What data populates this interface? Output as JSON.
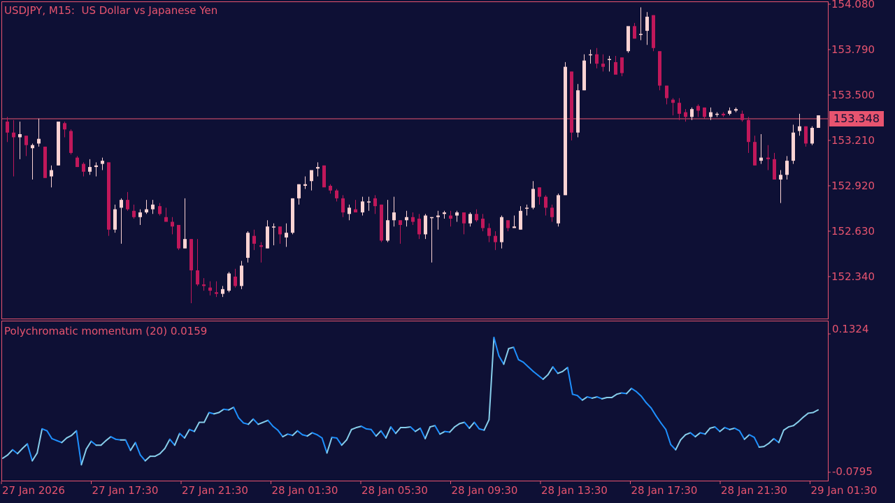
{
  "header": {
    "title": "USDJPY, M15:  US Dollar vs Japanese Yen"
  },
  "indicator": {
    "label": "Polychromatic momentum (20) 0.0159",
    "max_label": "0.1324",
    "min_label": "-0.0795"
  },
  "price_axis": {
    "ticks": [
      "154.080",
      "153.790",
      "153.500",
      "153.210",
      "152.920",
      "152.630",
      "152.340"
    ],
    "current_price": "153.348"
  },
  "time_axis": {
    "ticks": [
      "27 Jan 2026",
      "27 Jan 17:30",
      "27 Jan 21:30",
      "28 Jan 01:30",
      "28 Jan 05:30",
      "28 Jan 09:30",
      "28 Jan 13:30",
      "28 Jan 17:30",
      "28 Jan 21:30",
      "29 Jan 01:30"
    ]
  },
  "colors": {
    "background": "#0e1035",
    "axis": "#e8546f",
    "bull": "#fbd3d3",
    "bear": "#c0185a",
    "momentum_up": "#1e90ff",
    "momentum_down": "#87ceeb"
  },
  "chart_data": [
    {
      "type": "candlestick",
      "title": "USDJPY, M15:  US Dollar vs Japanese Yen",
      "ylabel": "Price",
      "ylim": [
        152.11,
        154.1
      ],
      "yticks": [
        154.08,
        153.79,
        153.5,
        153.21,
        152.92,
        152.63,
        152.34
      ],
      "current_price": 153.348,
      "xticks": [
        "27 Jan 2026",
        "27 Jan 17:30",
        "27 Jan 21:30",
        "28 Jan 01:30",
        "28 Jan 05:30",
        "28 Jan 09:30",
        "28 Jan 13:30",
        "28 Jan 17:30",
        "28 Jan 21:30",
        "29 Jan 01:30"
      ],
      "candles": [
        {
          "o": 153.33,
          "h": 153.36,
          "l": 153.2,
          "c": 153.26
        },
        {
          "o": 153.26,
          "h": 153.34,
          "l": 152.98,
          "c": 153.23
        },
        {
          "o": 153.23,
          "h": 153.33,
          "l": 153.09,
          "c": 153.25
        },
        {
          "o": 153.24,
          "h": 153.24,
          "l": 153.11,
          "c": 153.18
        },
        {
          "o": 153.16,
          "h": 153.19,
          "l": 152.96,
          "c": 153.18
        },
        {
          "o": 153.19,
          "h": 153.35,
          "l": 153.17,
          "c": 153.22
        },
        {
          "o": 153.17,
          "h": 153.17,
          "l": 152.97,
          "c": 152.97
        },
        {
          "o": 152.98,
          "h": 153.05,
          "l": 152.91,
          "c": 153.02
        },
        {
          "o": 153.05,
          "h": 153.32,
          "l": 153.05,
          "c": 153.33
        },
        {
          "o": 153.32,
          "h": 153.33,
          "l": 153.23,
          "c": 153.28
        },
        {
          "o": 153.27,
          "h": 153.28,
          "l": 153.12,
          "c": 153.13
        },
        {
          "o": 153.1,
          "h": 153.11,
          "l": 153.04,
          "c": 153.04
        },
        {
          "o": 153.06,
          "h": 153.07,
          "l": 152.98,
          "c": 153.01
        },
        {
          "o": 153.01,
          "h": 153.09,
          "l": 152.99,
          "c": 153.04
        },
        {
          "o": 153.04,
          "h": 153.07,
          "l": 152.98,
          "c": 153.05
        },
        {
          "o": 153.06,
          "h": 153.1,
          "l": 153.02,
          "c": 153.08
        },
        {
          "o": 153.07,
          "h": 153.07,
          "l": 152.6,
          "c": 152.64
        },
        {
          "o": 152.64,
          "h": 152.8,
          "l": 152.62,
          "c": 152.77
        },
        {
          "o": 152.78,
          "h": 152.84,
          "l": 152.55,
          "c": 152.83
        },
        {
          "o": 152.83,
          "h": 152.88,
          "l": 152.76,
          "c": 152.77
        },
        {
          "o": 152.76,
          "h": 152.8,
          "l": 152.71,
          "c": 152.72
        },
        {
          "o": 152.72,
          "h": 152.77,
          "l": 152.67,
          "c": 152.75
        },
        {
          "o": 152.75,
          "h": 152.83,
          "l": 152.74,
          "c": 152.77
        },
        {
          "o": 152.77,
          "h": 152.83,
          "l": 152.74,
          "c": 152.8
        },
        {
          "o": 152.79,
          "h": 152.81,
          "l": 152.73,
          "c": 152.74
        },
        {
          "o": 152.72,
          "h": 152.78,
          "l": 152.69,
          "c": 152.69
        },
        {
          "o": 152.69,
          "h": 152.72,
          "l": 152.61,
          "c": 152.66
        },
        {
          "o": 152.67,
          "h": 152.67,
          "l": 152.51,
          "c": 152.52
        },
        {
          "o": 152.52,
          "h": 152.84,
          "l": 152.52,
          "c": 152.58
        },
        {
          "o": 152.58,
          "h": 152.58,
          "l": 152.17,
          "c": 152.38
        },
        {
          "o": 152.38,
          "h": 152.58,
          "l": 152.28,
          "c": 152.29
        },
        {
          "o": 152.29,
          "h": 152.33,
          "l": 152.25,
          "c": 152.28
        },
        {
          "o": 152.27,
          "h": 152.31,
          "l": 152.22,
          "c": 152.25
        },
        {
          "o": 152.24,
          "h": 152.31,
          "l": 152.21,
          "c": 152.23
        },
        {
          "o": 152.23,
          "h": 152.28,
          "l": 152.21,
          "c": 152.26
        },
        {
          "o": 152.25,
          "h": 152.37,
          "l": 152.24,
          "c": 152.36
        },
        {
          "o": 152.34,
          "h": 152.39,
          "l": 152.27,
          "c": 152.28
        },
        {
          "o": 152.28,
          "h": 152.44,
          "l": 152.26,
          "c": 152.41
        },
        {
          "o": 152.46,
          "h": 152.63,
          "l": 152.43,
          "c": 152.62
        },
        {
          "o": 152.6,
          "h": 152.64,
          "l": 152.51,
          "c": 152.55
        },
        {
          "o": 152.54,
          "h": 152.56,
          "l": 152.43,
          "c": 152.53
        },
        {
          "o": 152.52,
          "h": 152.7,
          "l": 152.52,
          "c": 152.66
        },
        {
          "o": 152.66,
          "h": 152.68,
          "l": 152.54,
          "c": 152.66
        },
        {
          "o": 152.66,
          "h": 152.66,
          "l": 152.55,
          "c": 152.61
        },
        {
          "o": 152.59,
          "h": 152.68,
          "l": 152.53,
          "c": 152.62
        },
        {
          "o": 152.62,
          "h": 152.84,
          "l": 152.61,
          "c": 152.84
        },
        {
          "o": 152.84,
          "h": 152.93,
          "l": 152.8,
          "c": 152.93
        },
        {
          "o": 152.92,
          "h": 152.98,
          "l": 152.9,
          "c": 152.93
        },
        {
          "o": 152.95,
          "h": 153.01,
          "l": 152.89,
          "c": 153.02
        },
        {
          "o": 153.03,
          "h": 153.07,
          "l": 152.98,
          "c": 153.04
        },
        {
          "o": 153.05,
          "h": 153.05,
          "l": 152.92,
          "c": 152.91
        },
        {
          "o": 152.92,
          "h": 152.93,
          "l": 152.87,
          "c": 152.89
        },
        {
          "o": 152.89,
          "h": 152.9,
          "l": 152.82,
          "c": 152.84
        },
        {
          "o": 152.84,
          "h": 152.86,
          "l": 152.72,
          "c": 152.75
        },
        {
          "o": 152.74,
          "h": 152.8,
          "l": 152.7,
          "c": 152.78
        },
        {
          "o": 152.77,
          "h": 152.83,
          "l": 152.75,
          "c": 152.75
        },
        {
          "o": 152.75,
          "h": 152.85,
          "l": 152.73,
          "c": 152.82
        },
        {
          "o": 152.82,
          "h": 152.85,
          "l": 152.76,
          "c": 152.82
        },
        {
          "o": 152.84,
          "h": 152.86,
          "l": 152.74,
          "c": 152.79
        },
        {
          "o": 152.8,
          "h": 152.8,
          "l": 152.56,
          "c": 152.57
        },
        {
          "o": 152.57,
          "h": 152.83,
          "l": 152.56,
          "c": 152.7
        },
        {
          "o": 152.7,
          "h": 152.85,
          "l": 152.66,
          "c": 152.75
        },
        {
          "o": 152.7,
          "h": 152.7,
          "l": 152.55,
          "c": 152.67
        },
        {
          "o": 152.7,
          "h": 152.76,
          "l": 152.66,
          "c": 152.72
        },
        {
          "o": 152.72,
          "h": 152.75,
          "l": 152.67,
          "c": 152.69
        },
        {
          "o": 152.71,
          "h": 152.74,
          "l": 152.58,
          "c": 152.61
        },
        {
          "o": 152.61,
          "h": 152.74,
          "l": 152.58,
          "c": 152.73
        },
        {
          "o": 152.72,
          "h": 152.72,
          "l": 152.43,
          "c": 152.72
        },
        {
          "o": 152.72,
          "h": 152.76,
          "l": 152.64,
          "c": 152.73
        },
        {
          "o": 152.74,
          "h": 152.76,
          "l": 152.71,
          "c": 152.75
        },
        {
          "o": 152.73,
          "h": 152.76,
          "l": 152.66,
          "c": 152.71
        },
        {
          "o": 152.73,
          "h": 152.76,
          "l": 152.69,
          "c": 152.75
        },
        {
          "o": 152.75,
          "h": 152.75,
          "l": 152.61,
          "c": 152.68
        },
        {
          "o": 152.68,
          "h": 152.75,
          "l": 152.66,
          "c": 152.74
        },
        {
          "o": 152.74,
          "h": 152.77,
          "l": 152.69,
          "c": 152.7
        },
        {
          "o": 152.71,
          "h": 152.74,
          "l": 152.63,
          "c": 152.65
        },
        {
          "o": 152.65,
          "h": 152.68,
          "l": 152.56,
          "c": 152.6
        },
        {
          "o": 152.6,
          "h": 152.63,
          "l": 152.51,
          "c": 152.56
        },
        {
          "o": 152.56,
          "h": 152.73,
          "l": 152.52,
          "c": 152.72
        },
        {
          "o": 152.7,
          "h": 152.7,
          "l": 152.63,
          "c": 152.65
        },
        {
          "o": 152.65,
          "h": 152.73,
          "l": 152.65,
          "c": 152.66
        },
        {
          "o": 152.64,
          "h": 152.79,
          "l": 152.64,
          "c": 152.76
        },
        {
          "o": 152.78,
          "h": 152.8,
          "l": 152.73,
          "c": 152.78
        },
        {
          "o": 152.78,
          "h": 152.95,
          "l": 152.77,
          "c": 152.9
        },
        {
          "o": 152.91,
          "h": 152.91,
          "l": 152.8,
          "c": 152.85
        },
        {
          "o": 152.85,
          "h": 152.86,
          "l": 152.73,
          "c": 152.78
        },
        {
          "o": 152.78,
          "h": 152.8,
          "l": 152.69,
          "c": 152.72
        },
        {
          "o": 152.68,
          "h": 152.87,
          "l": 152.66,
          "c": 152.86
        },
        {
          "o": 152.86,
          "h": 153.71,
          "l": 152.86,
          "c": 153.68
        },
        {
          "o": 153.65,
          "h": 153.65,
          "l": 153.21,
          "c": 153.26
        },
        {
          "o": 153.26,
          "h": 153.57,
          "l": 153.23,
          "c": 153.53
        },
        {
          "o": 153.53,
          "h": 153.76,
          "l": 153.53,
          "c": 153.72
        },
        {
          "o": 153.76,
          "h": 153.79,
          "l": 153.7,
          "c": 153.76
        },
        {
          "o": 153.76,
          "h": 153.8,
          "l": 153.67,
          "c": 153.7
        },
        {
          "o": 153.7,
          "h": 153.76,
          "l": 153.65,
          "c": 153.68
        },
        {
          "o": 153.73,
          "h": 153.75,
          "l": 153.65,
          "c": 153.73
        },
        {
          "o": 153.71,
          "h": 153.75,
          "l": 153.66,
          "c": 153.63
        },
        {
          "o": 153.74,
          "h": 153.74,
          "l": 153.62,
          "c": 153.64
        },
        {
          "o": 153.78,
          "h": 153.92,
          "l": 153.77,
          "c": 153.94
        },
        {
          "o": 153.94,
          "h": 153.96,
          "l": 153.86,
          "c": 153.86
        },
        {
          "o": 153.89,
          "h": 154.06,
          "l": 153.85,
          "c": 153.89
        },
        {
          "o": 153.91,
          "h": 154.03,
          "l": 153.82,
          "c": 154.0
        },
        {
          "o": 154.01,
          "h": 154.01,
          "l": 153.78,
          "c": 153.8
        },
        {
          "o": 153.78,
          "h": 153.78,
          "l": 153.53,
          "c": 153.56
        },
        {
          "o": 153.56,
          "h": 153.56,
          "l": 153.44,
          "c": 153.48
        },
        {
          "o": 153.47,
          "h": 153.48,
          "l": 153.37,
          "c": 153.45
        },
        {
          "o": 153.45,
          "h": 153.48,
          "l": 153.34,
          "c": 153.38
        },
        {
          "o": 153.39,
          "h": 153.41,
          "l": 153.33,
          "c": 153.36
        },
        {
          "o": 153.36,
          "h": 153.42,
          "l": 153.34,
          "c": 153.41
        },
        {
          "o": 153.43,
          "h": 153.44,
          "l": 153.36,
          "c": 153.4
        },
        {
          "o": 153.42,
          "h": 153.42,
          "l": 153.35,
          "c": 153.36
        },
        {
          "o": 153.36,
          "h": 153.42,
          "l": 153.34,
          "c": 153.39
        },
        {
          "o": 153.38,
          "h": 153.39,
          "l": 153.36,
          "c": 153.38
        },
        {
          "o": 153.38,
          "h": 153.39,
          "l": 153.36,
          "c": 153.37
        },
        {
          "o": 153.38,
          "h": 153.42,
          "l": 153.37,
          "c": 153.4
        },
        {
          "o": 153.4,
          "h": 153.42,
          "l": 153.39,
          "c": 153.41
        },
        {
          "o": 153.38,
          "h": 153.4,
          "l": 153.33,
          "c": 153.34
        },
        {
          "o": 153.34,
          "h": 153.36,
          "l": 153.13,
          "c": 153.2
        },
        {
          "o": 153.2,
          "h": 153.24,
          "l": 153.05,
          "c": 153.05
        },
        {
          "o": 153.08,
          "h": 153.25,
          "l": 153.06,
          "c": 153.1
        },
        {
          "o": 153.1,
          "h": 153.18,
          "l": 153.02,
          "c": 153.09
        },
        {
          "o": 153.09,
          "h": 153.13,
          "l": 152.96,
          "c": 152.96
        },
        {
          "o": 152.96,
          "h": 153.02,
          "l": 152.81,
          "c": 152.99
        },
        {
          "o": 152.99,
          "h": 153.11,
          "l": 152.96,
          "c": 153.08
        },
        {
          "o": 153.08,
          "h": 153.31,
          "l": 153.06,
          "c": 153.26
        },
        {
          "o": 153.27,
          "h": 153.38,
          "l": 153.24,
          "c": 153.3
        },
        {
          "o": 153.3,
          "h": 153.3,
          "l": 153.17,
          "c": 153.19
        },
        {
          "o": 153.19,
          "h": 153.3,
          "l": 153.18,
          "c": 153.29
        },
        {
          "o": 153.29,
          "h": 153.37,
          "l": 153.29,
          "c": 153.37
        }
      ]
    },
    {
      "type": "line",
      "title": "Polychromatic momentum (20) 0.0159",
      "ylim": [
        -0.0795,
        0.1324
      ],
      "last_value": 0.0159,
      "values": [
        -0.058,
        -0.053,
        -0.045,
        -0.051,
        -0.043,
        -0.036,
        -0.062,
        -0.05,
        -0.013,
        -0.016,
        -0.028,
        -0.031,
        -0.034,
        -0.027,
        -0.023,
        -0.016,
        -0.068,
        -0.044,
        -0.032,
        -0.038,
        -0.038,
        -0.031,
        -0.025,
        -0.029,
        -0.03,
        -0.03,
        -0.046,
        -0.034,
        -0.053,
        -0.062,
        -0.055,
        -0.055,
        -0.051,
        -0.043,
        -0.029,
        -0.038,
        -0.02,
        -0.027,
        -0.014,
        -0.017,
        -0.003,
        -0.003,
        0.012,
        0.01,
        0.012,
        0.017,
        0.016,
        0.02,
        0.004,
        -0.004,
        -0.006,
        0.002,
        -0.006,
        -0.003,
        0.0,
        -0.009,
        -0.015,
        -0.025,
        -0.021,
        -0.023,
        -0.016,
        -0.022,
        -0.024,
        -0.019,
        -0.022,
        -0.027,
        -0.05,
        -0.026,
        -0.027,
        -0.038,
        -0.03,
        -0.014,
        -0.011,
        -0.009,
        -0.013,
        -0.014,
        -0.024,
        -0.016,
        -0.027,
        -0.01,
        -0.02,
        -0.011,
        -0.011,
        -0.01,
        -0.017,
        -0.012,
        -0.028,
        -0.01,
        -0.008,
        -0.021,
        -0.017,
        -0.018,
        -0.01,
        -0.005,
        -0.003,
        -0.012,
        -0.003,
        -0.013,
        -0.015,
        0.001,
        0.127,
        0.099,
        0.086,
        0.11,
        0.112,
        0.093,
        0.089,
        0.082,
        0.075,
        0.069,
        0.063,
        0.07,
        0.082,
        0.072,
        0.075,
        0.081,
        0.04,
        0.038,
        0.031,
        0.036,
        0.034,
        0.036,
        0.033,
        0.035,
        0.035,
        0.04,
        0.042,
        0.041,
        0.049,
        0.044,
        0.037,
        0.027,
        0.019,
        0.007,
        -0.004,
        -0.014,
        -0.037,
        -0.045,
        -0.03,
        -0.022,
        -0.019,
        -0.025,
        -0.019,
        -0.021,
        -0.012,
        -0.01,
        -0.017,
        -0.011,
        -0.014,
        -0.012,
        -0.016,
        -0.029,
        -0.022,
        -0.026,
        -0.041,
        -0.04,
        -0.035,
        -0.028,
        -0.034,
        -0.015,
        -0.01,
        -0.008,
        -0.002,
        0.005,
        0.011,
        0.012,
        0.016
      ]
    }
  ]
}
